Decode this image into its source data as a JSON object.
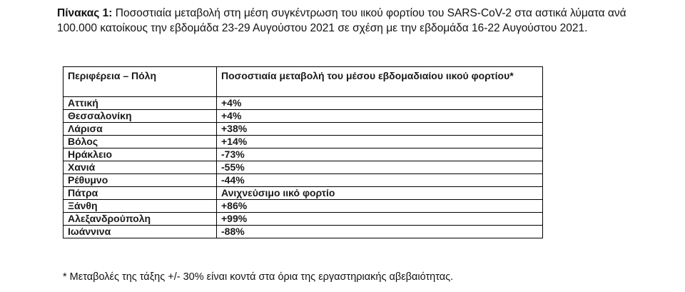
{
  "caption": {
    "label": "Πίνακας 1:",
    "text": "Ποσοστιαία μεταβολή στη μέση συγκέντρωση του ιικού φορτίου του SARS-CoV-2 στα αστικά λύματα ανά 100.000 κατοίκους την εβδομάδα 23-29 Αυγούστου 2021 σε σχέση με την εβδομάδα 16-22 Αυγούστου 2021."
  },
  "table": {
    "headers": [
      "Περιφέρεια – Πόλη",
      "Ποσοστιαία μεταβολή του μέσου εβδομαδιαίου ιικού φορτίου*"
    ],
    "rows": [
      {
        "city": "Αττική",
        "change": "+4%"
      },
      {
        "city": "Θεσσαλονίκη",
        "change": "+4%"
      },
      {
        "city": "Λάρισα",
        "change": "+38%"
      },
      {
        "city": "Βόλος",
        "change": "+14%"
      },
      {
        "city": "Ηράκλειο",
        "change": "-73%"
      },
      {
        "city": "Χανιά",
        "change": "-55%"
      },
      {
        "city": "Ρέθυμνο",
        "change": "-44%"
      },
      {
        "city": "Πάτρα",
        "change": "Ανιχνεύσιμο ιικό φορτίο"
      },
      {
        "city": "Ξάνθη",
        "change": "+86%"
      },
      {
        "city": "Αλεξανδρούπολη",
        "change": "+99%"
      },
      {
        "city": "Ιωάννινα",
        "change": "-88%"
      }
    ]
  },
  "footnote": "* Μεταβολές της τάξης +/- 30% είναι κοντά στα όρια της εργαστηριακής αβεβαιότητας."
}
